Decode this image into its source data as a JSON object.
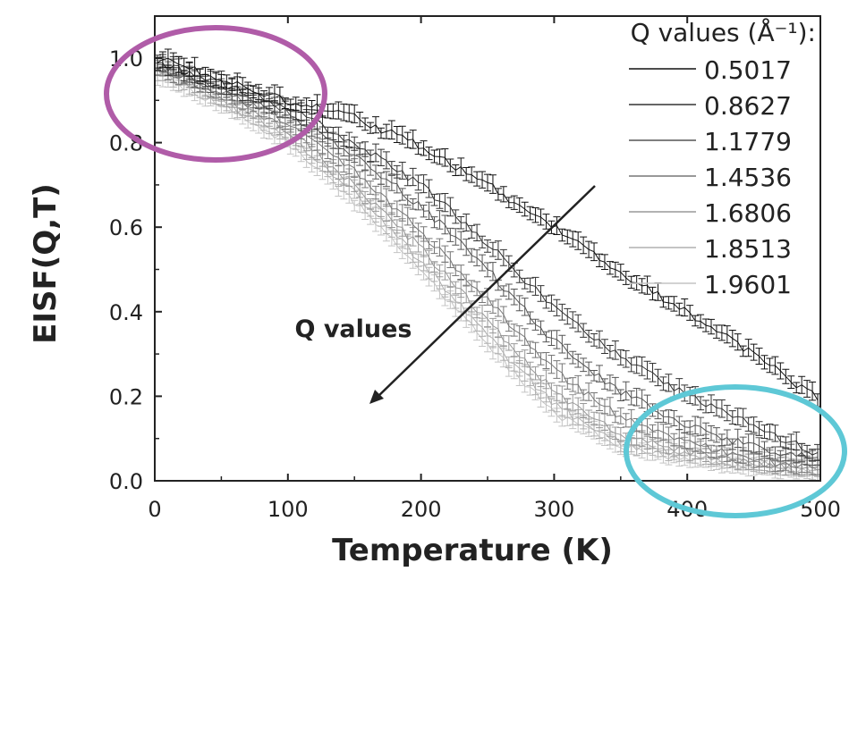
{
  "chart_data": {
    "type": "line",
    "title": "",
    "xlabel": "Temperature (K)",
    "ylabel": "EISF(Q,T)",
    "xlim": [
      0,
      500
    ],
    "ylim": [
      0,
      1.1
    ],
    "xticks": [
      "0",
      "100",
      "200",
      "300",
      "400",
      "500"
    ],
    "yticks": [
      "0.0",
      "0.2",
      "0.4",
      "0.6",
      "0.8",
      "1.0"
    ],
    "legend_title": "Q values (Å⁻¹):",
    "legend_position": "top-right",
    "annotation": "Q values",
    "x": [
      0,
      50,
      100,
      150,
      200,
      250,
      300,
      350,
      400,
      450,
      500
    ],
    "series": [
      {
        "name": "0.5017",
        "color": "#111111",
        "values": [
          1.0,
          0.95,
          0.9,
          0.86,
          0.79,
          0.7,
          0.6,
          0.49,
          0.4,
          0.3,
          0.19
        ]
      },
      {
        "name": "0.8627",
        "color": "#333333",
        "values": [
          0.99,
          0.94,
          0.88,
          0.8,
          0.7,
          0.56,
          0.41,
          0.29,
          0.2,
          0.13,
          0.06
        ]
      },
      {
        "name": "1.1779",
        "color": "#555555",
        "values": [
          0.99,
          0.93,
          0.87,
          0.77,
          0.65,
          0.5,
          0.33,
          0.21,
          0.13,
          0.08,
          0.05
        ]
      },
      {
        "name": "1.4536",
        "color": "#777777",
        "values": [
          0.98,
          0.92,
          0.85,
          0.73,
          0.59,
          0.43,
          0.26,
          0.15,
          0.09,
          0.05,
          0.03
        ]
      },
      {
        "name": "1.6806",
        "color": "#999999",
        "values": [
          0.98,
          0.91,
          0.83,
          0.7,
          0.55,
          0.38,
          0.21,
          0.11,
          0.07,
          0.04,
          0.03
        ]
      },
      {
        "name": "1.8513",
        "color": "#b0b0b0",
        "values": [
          0.97,
          0.9,
          0.82,
          0.68,
          0.52,
          0.34,
          0.18,
          0.09,
          0.06,
          0.04,
          0.02
        ]
      },
      {
        "name": "1.9601",
        "color": "#c4c4c4",
        "values": [
          0.96,
          0.89,
          0.8,
          0.66,
          0.5,
          0.32,
          0.16,
          0.08,
          0.05,
          0.03,
          0.02
        ]
      }
    ],
    "highlights": [
      {
        "label": "low-temperature region",
        "color": "#b05ca8"
      },
      {
        "label": "high-temperature region",
        "color": "#5ec8d6"
      }
    ]
  }
}
